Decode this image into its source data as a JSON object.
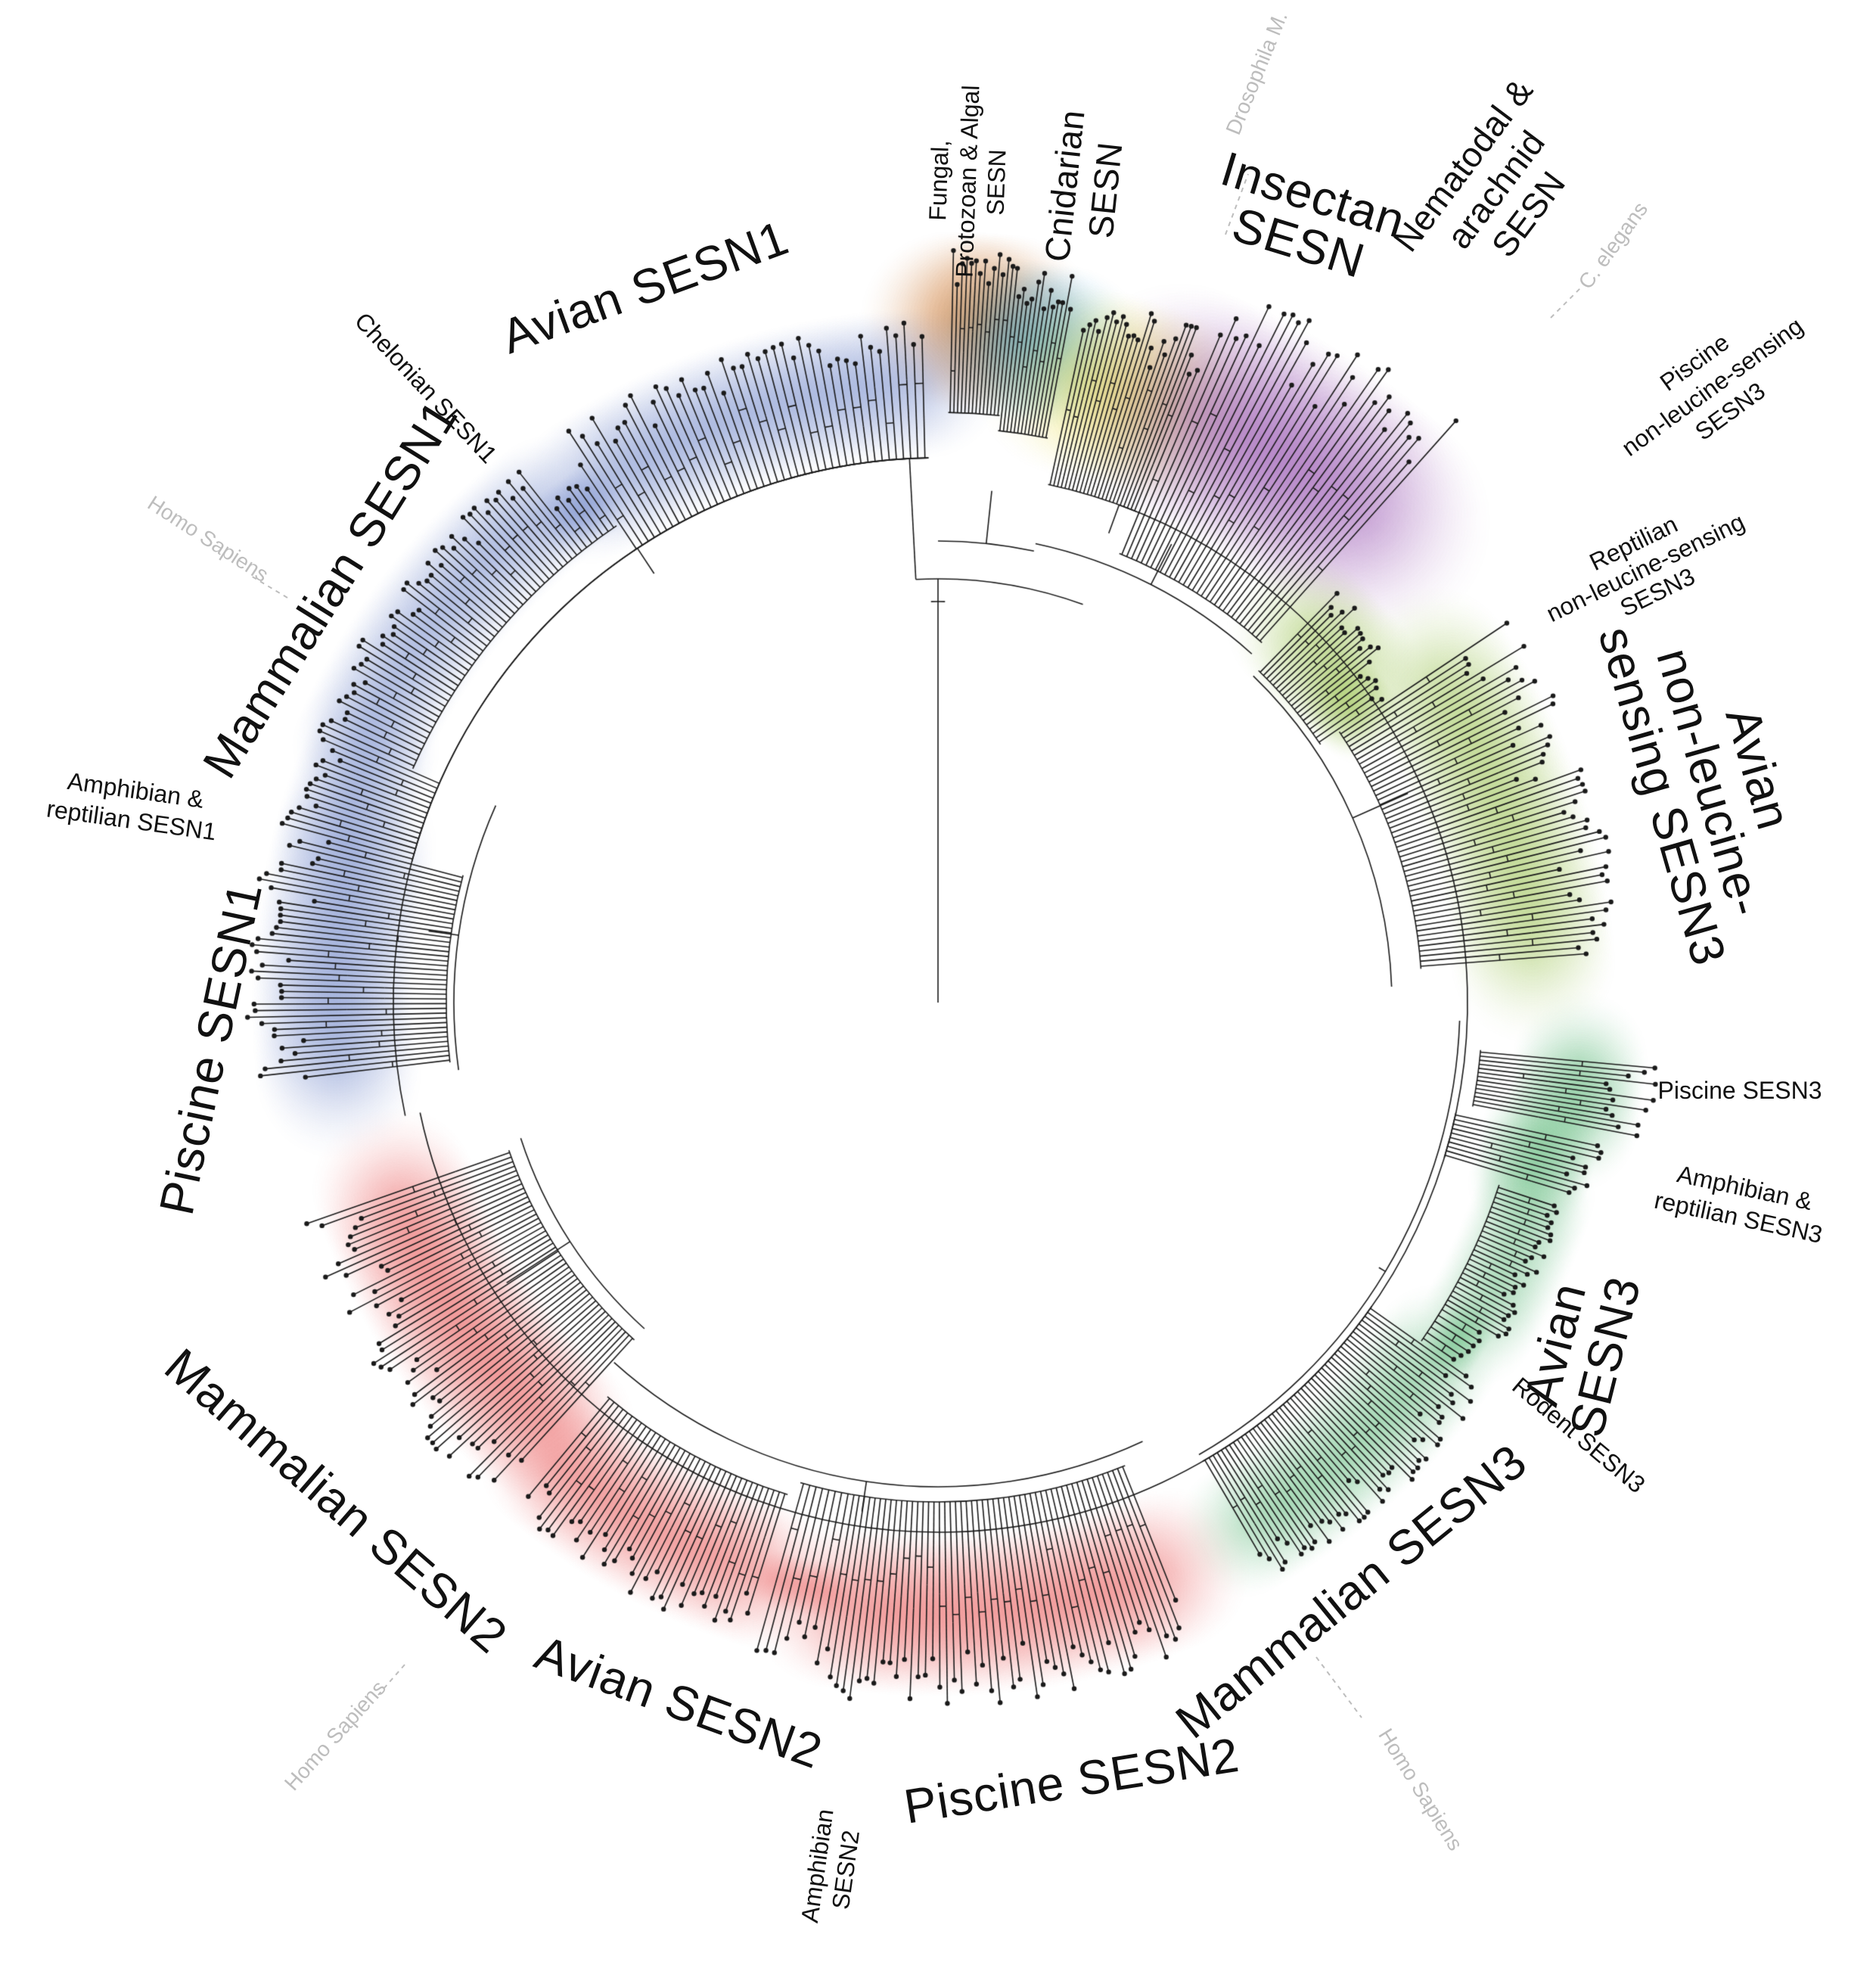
{
  "diagram": {
    "type": "circular-phylogenetic-tree",
    "clades": [
      {
        "id": "fungal",
        "lines": [
          "Fungal,",
          "Protozoan & Algal",
          "SESN"
        ],
        "color": "#c76a1c"
      },
      {
        "id": "cnidarian",
        "lines": [
          "Cnidarian",
          "SESN"
        ],
        "color": "#3fa4d8"
      },
      {
        "id": "insectan",
        "lines": [
          "Insectan",
          "SESN"
        ],
        "color": "#e8dc45"
      },
      {
        "id": "nematodal",
        "lines": [
          "Nematodal &",
          "arachnid",
          "SESN"
        ],
        "color": "#9a58b3"
      },
      {
        "id": "piscine-nls-sesn3",
        "lines": [
          "Piscine",
          "non-leucine-sensing",
          "SESN3"
        ],
        "color": "#9fc55a"
      },
      {
        "id": "reptilian-nls-sesn3",
        "lines": [
          "Reptilian",
          "non-leucine-sensing",
          "SESN3"
        ],
        "color": "#9fc55a"
      },
      {
        "id": "avian-nls-sesn3",
        "lines": [
          "Avian",
          "non-leucine-",
          "sensing SESN3"
        ],
        "color": "#9fc55a"
      },
      {
        "id": "piscine-sesn3",
        "lines": [
          "Piscine SESN3"
        ],
        "color": "#5db879"
      },
      {
        "id": "amph-rept-sesn3",
        "lines": [
          "Amphibian &",
          "reptilian SESN3"
        ],
        "color": "#5db879"
      },
      {
        "id": "avian-sesn3",
        "lines": [
          "Avian",
          "SESN3"
        ],
        "color": "#5db879"
      },
      {
        "id": "rodent-sesn3",
        "lines": [
          "Rodent SESN3"
        ],
        "color": "#5db879"
      },
      {
        "id": "mammalian-sesn3",
        "lines": [
          "Mammalian SESN3"
        ],
        "color": "#5db879"
      },
      {
        "id": "piscine-sesn2",
        "lines": [
          "Piscine SESN2"
        ],
        "color": "#e95b5b"
      },
      {
        "id": "amphibian-sesn2",
        "lines": [
          "Amphibian",
          "SESN2"
        ],
        "color": "#e95b5b"
      },
      {
        "id": "avian-sesn2",
        "lines": [
          "Avian SESN2"
        ],
        "color": "#e95b5b"
      },
      {
        "id": "mammalian-sesn2",
        "lines": [
          "Mammalian SESN2"
        ],
        "color": "#e95b5b"
      },
      {
        "id": "piscine-sesn1",
        "lines": [
          "Piscine SESN1"
        ],
        "color": "#6f86c9"
      },
      {
        "id": "amph-rept-sesn1",
        "lines": [
          "Amphibian &",
          "reptilian SESN1"
        ],
        "color": "#6f86c9"
      },
      {
        "id": "mammalian-sesn1",
        "lines": [
          "Mammalian SESN1"
        ],
        "color": "#6f86c9"
      },
      {
        "id": "chelonian-sesn1",
        "lines": [
          "Chelonian SESN1"
        ],
        "color": "#6f86c9"
      },
      {
        "id": "avian-sesn1",
        "lines": [
          "Avian SESN1"
        ],
        "color": "#6f86c9"
      }
    ],
    "reference_species": [
      {
        "id": "drosophila",
        "label": "Drosophila M."
      },
      {
        "id": "c-elegans",
        "label": "C. elegans"
      },
      {
        "id": "homo-sesn1",
        "label": "Homo Sapiens"
      },
      {
        "id": "homo-sesn2",
        "label": "Homo Sapiens"
      },
      {
        "id": "homo-sesn3",
        "label": "Homo Sapiens"
      }
    ],
    "colors": {
      "branch": "#1a1a1a",
      "reference_label": "#bdbdbd",
      "background": "#ffffff"
    }
  }
}
